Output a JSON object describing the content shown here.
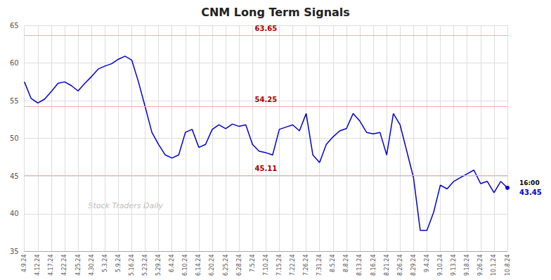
{
  "chart_data": {
    "type": "line",
    "title": "CNM Long Term Signals",
    "color": "#0000cc",
    "ylim": [
      35,
      65
    ],
    "yticks": [
      35,
      40,
      45,
      50,
      55,
      60,
      65
    ],
    "grid": true,
    "categories": [
      "4.9.24",
      null,
      "4.12.24",
      null,
      "4.17.24",
      null,
      "4.22.24",
      null,
      "4.25.24",
      null,
      "4.30.24",
      null,
      "5.3.24",
      null,
      "5.9.24",
      null,
      "5.16.24",
      null,
      "5.23.24",
      null,
      "5.29.24",
      null,
      "6.4.24",
      null,
      "6.10.24",
      null,
      "6.14.24",
      null,
      "6.20.24",
      null,
      "6.25.24",
      null,
      "6.28.24",
      null,
      "7.5.24",
      null,
      "7.10.24",
      null,
      "7.15.24",
      null,
      "7.22.24",
      null,
      "7.26.24",
      null,
      "7.31.24",
      null,
      "8.5.24",
      null,
      "8.8.24",
      null,
      "8.13.24",
      null,
      "8.16.24",
      null,
      "8.21.24",
      null,
      "8.26.24",
      null,
      "8.29.24",
      null,
      "9.4.24",
      null,
      "9.10.24",
      null,
      "9.13.24",
      null,
      "9.18.24",
      null,
      "9.26.24",
      null,
      "10.1.24",
      null,
      "10.8.24"
    ],
    "values": [
      57.5,
      55.3,
      54.7,
      55.2,
      56.2,
      57.3,
      57.5,
      57.0,
      56.3,
      57.3,
      58.2,
      59.2,
      59.6,
      59.9,
      60.5,
      60.9,
      60.4,
      57.5,
      54.2,
      50.8,
      49.2,
      47.8,
      47.4,
      47.8,
      50.8,
      51.2,
      48.8,
      49.2,
      51.2,
      51.8,
      51.3,
      51.9,
      51.6,
      51.8,
      49.2,
      48.3,
      48.1,
      47.8,
      51.2,
      51.5,
      51.8,
      51.0,
      53.3,
      47.8,
      46.8,
      49.2,
      50.2,
      51.0,
      51.3,
      53.3,
      52.3,
      50.8,
      50.6,
      50.8,
      47.8,
      53.3,
      51.8,
      48.3,
      44.8,
      37.8,
      37.8,
      40.2,
      43.8,
      43.3,
      44.3,
      44.8,
      45.3,
      45.8,
      44.0,
      44.3,
      42.8,
      44.3,
      43.45
    ],
    "hlines": [
      {
        "y": 63.65,
        "label": "63.65",
        "color": "#ffaaaa"
      },
      {
        "y": 54.25,
        "label": "54.25",
        "color": "#ffaaaa"
      },
      {
        "y": 45.11,
        "label": "45.11",
        "color": "#ffaaaa"
      }
    ],
    "hline_label_color": "#aa0000",
    "annotations": [
      "16:00",
      "43.45"
    ],
    "watermark": "Stock Traders Daily"
  }
}
